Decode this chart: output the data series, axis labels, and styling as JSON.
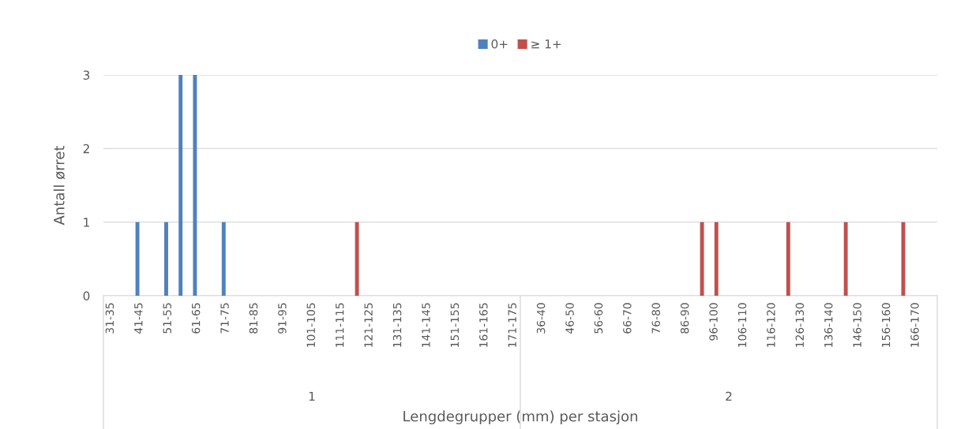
{
  "chart_data": {
    "type": "bar",
    "categories": [
      "31-35",
      null,
      "41-45",
      null,
      "51-55",
      null,
      "61-65",
      null,
      "71-75",
      null,
      "81-85",
      null,
      "91-95",
      null,
      "101-105",
      null,
      "111-115",
      null,
      "121-125",
      null,
      "131-135",
      null,
      "141-145",
      null,
      "151-155",
      null,
      "161-165",
      null,
      "171-175",
      null,
      "36-40",
      null,
      "46-50",
      null,
      "56-60",
      null,
      "66-70",
      null,
      "76-80",
      null,
      "86-90",
      null,
      "96-100",
      null,
      "106-110",
      null,
      "116-120",
      null,
      "126-130",
      null,
      "136-140",
      null,
      "146-150",
      null,
      "156-160",
      null,
      "166-170",
      null
    ],
    "series": [
      {
        "name": "0+",
        "color": "#4f81bd",
        "values": [
          null,
          null,
          1,
          null,
          1,
          3,
          3,
          null,
          1,
          null,
          null,
          null,
          null,
          null,
          null,
          null,
          null,
          null,
          null,
          null,
          null,
          null,
          null,
          null,
          null,
          null,
          null,
          null,
          null,
          null,
          null,
          null,
          null,
          null,
          null,
          null,
          null,
          null,
          null,
          null,
          null,
          null,
          null,
          null,
          null,
          null,
          null,
          null,
          null,
          null,
          null,
          null,
          null,
          null,
          null,
          null,
          null,
          null
        ]
      },
      {
        "name": "≥ 1+",
        "color": "#c0504d",
        "values": [
          null,
          null,
          null,
          null,
          null,
          null,
          null,
          null,
          null,
          null,
          null,
          null,
          null,
          null,
          null,
          null,
          null,
          1,
          null,
          null,
          null,
          null,
          null,
          null,
          null,
          null,
          null,
          null,
          null,
          null,
          null,
          null,
          null,
          null,
          null,
          null,
          null,
          null,
          null,
          null,
          null,
          1,
          1,
          null,
          null,
          null,
          null,
          1,
          null,
          null,
          null,
          1,
          null,
          null,
          null,
          1,
          null,
          null
        ]
      }
    ],
    "ylim": [
      0,
      3
    ],
    "yticks": [
      0,
      1,
      2,
      3
    ],
    "grid": "y",
    "legend": "top",
    "ylabel": "Antall ørret",
    "xlabel": "Lengdegrupper (mm) per stasjon",
    "annotations": [
      "1",
      "2"
    ]
  }
}
